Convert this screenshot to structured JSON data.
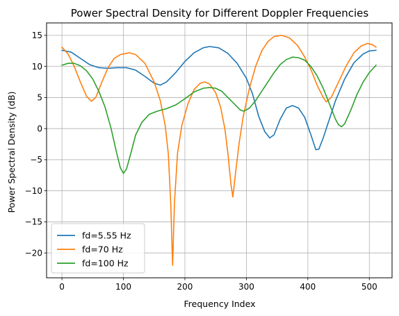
{
  "chart_data": {
    "type": "line",
    "title": "Power Spectral Density for Different Doppler Frequencies",
    "xlabel": "Frequency Index",
    "ylabel": "Power Spectral Density (dB)",
    "xlim": [
      -25,
      537
    ],
    "ylim": [
      -24,
      17
    ],
    "xticks": [
      0,
      100,
      200,
      300,
      400,
      500
    ],
    "yticks": [
      -20,
      -15,
      -10,
      -5,
      0,
      5,
      10,
      15
    ],
    "grid": true,
    "legend_position": "lower-left",
    "series": [
      {
        "name": "fd=5.55 Hz",
        "color": "#1f77b4",
        "points": [
          [
            0,
            12.6
          ],
          [
            15,
            12.3
          ],
          [
            30,
            11.3
          ],
          [
            45,
            10.3
          ],
          [
            60,
            9.8
          ],
          [
            75,
            9.7
          ],
          [
            90,
            9.8
          ],
          [
            105,
            9.8
          ],
          [
            120,
            9.4
          ],
          [
            135,
            8.4
          ],
          [
            150,
            7.3
          ],
          [
            160,
            7.0
          ],
          [
            170,
            7.5
          ],
          [
            185,
            9.0
          ],
          [
            200,
            10.8
          ],
          [
            215,
            12.2
          ],
          [
            230,
            13.0
          ],
          [
            240,
            13.2
          ],
          [
            255,
            13.0
          ],
          [
            270,
            12.1
          ],
          [
            285,
            10.5
          ],
          [
            300,
            8.1
          ],
          [
            310,
            5.6
          ],
          [
            320,
            2.0
          ],
          [
            330,
            -0.5
          ],
          [
            338,
            -1.5
          ],
          [
            345,
            -1.0
          ],
          [
            355,
            1.5
          ],
          [
            365,
            3.3
          ],
          [
            375,
            3.7
          ],
          [
            385,
            3.3
          ],
          [
            395,
            1.8
          ],
          [
            405,
            -1.0
          ],
          [
            413,
            -3.4
          ],
          [
            418,
            -3.3
          ],
          [
            425,
            -1.5
          ],
          [
            435,
            1.5
          ],
          [
            445,
            4.5
          ],
          [
            460,
            8.0
          ],
          [
            475,
            10.6
          ],
          [
            490,
            12.0
          ],
          [
            500,
            12.5
          ],
          [
            511,
            12.6
          ]
        ]
      },
      {
        "name": "fd=70 Hz",
        "color": "#ff7f0e",
        "points": [
          [
            0,
            13.1
          ],
          [
            10,
            12.0
          ],
          [
            20,
            10.0
          ],
          [
            30,
            7.5
          ],
          [
            40,
            5.2
          ],
          [
            48,
            4.4
          ],
          [
            55,
            5.0
          ],
          [
            65,
            7.5
          ],
          [
            75,
            9.8
          ],
          [
            85,
            11.3
          ],
          [
            95,
            11.9
          ],
          [
            110,
            12.2
          ],
          [
            120,
            11.9
          ],
          [
            135,
            10.5
          ],
          [
            150,
            7.5
          ],
          [
            160,
            4.5
          ],
          [
            168,
            0.5
          ],
          [
            173,
            -4.0
          ],
          [
            177,
            -12.0
          ],
          [
            180,
            -22.0
          ],
          [
            183,
            -12.0
          ],
          [
            188,
            -4.0
          ],
          [
            195,
            0.5
          ],
          [
            205,
            4.0
          ],
          [
            215,
            6.3
          ],
          [
            225,
            7.3
          ],
          [
            232,
            7.5
          ],
          [
            240,
            7.2
          ],
          [
            250,
            5.8
          ],
          [
            258,
            3.5
          ],
          [
            265,
            0.0
          ],
          [
            270,
            -4.0
          ],
          [
            275,
            -9.0
          ],
          [
            278,
            -11.0
          ],
          [
            282,
            -7.5
          ],
          [
            288,
            -2.5
          ],
          [
            295,
            2.0
          ],
          [
            305,
            6.5
          ],
          [
            315,
            10.0
          ],
          [
            325,
            12.5
          ],
          [
            335,
            14.0
          ],
          [
            345,
            14.8
          ],
          [
            357,
            15.0
          ],
          [
            370,
            14.6
          ],
          [
            383,
            13.4
          ],
          [
            395,
            11.5
          ],
          [
            405,
            9.5
          ],
          [
            415,
            7.0
          ],
          [
            425,
            5.0
          ],
          [
            430,
            4.3
          ],
          [
            438,
            5.0
          ],
          [
            450,
            7.5
          ],
          [
            462,
            10.0
          ],
          [
            475,
            12.2
          ],
          [
            487,
            13.3
          ],
          [
            497,
            13.7
          ],
          [
            505,
            13.5
          ],
          [
            511,
            13.1
          ]
        ]
      },
      {
        "name": "fd=100 Hz",
        "color": "#2ca02c",
        "points": [
          [
            0,
            10.2
          ],
          [
            10,
            10.5
          ],
          [
            20,
            10.5
          ],
          [
            30,
            10.1
          ],
          [
            40,
            9.3
          ],
          [
            50,
            8.0
          ],
          [
            60,
            6.0
          ],
          [
            70,
            3.5
          ],
          [
            80,
            0.0
          ],
          [
            88,
            -3.5
          ],
          [
            95,
            -6.3
          ],
          [
            100,
            -7.2
          ],
          [
            105,
            -6.5
          ],
          [
            112,
            -4.0
          ],
          [
            120,
            -1.0
          ],
          [
            130,
            1.0
          ],
          [
            142,
            2.3
          ],
          [
            155,
            2.8
          ],
          [
            170,
            3.2
          ],
          [
            185,
            3.8
          ],
          [
            200,
            4.8
          ],
          [
            215,
            5.9
          ],
          [
            230,
            6.5
          ],
          [
            240,
            6.6
          ],
          [
            250,
            6.5
          ],
          [
            260,
            6.0
          ],
          [
            270,
            5.0
          ],
          [
            280,
            4.0
          ],
          [
            290,
            3.0
          ],
          [
            296,
            2.8
          ],
          [
            305,
            3.3
          ],
          [
            315,
            4.5
          ],
          [
            325,
            6.0
          ],
          [
            335,
            7.5
          ],
          [
            345,
            9.0
          ],
          [
            355,
            10.3
          ],
          [
            365,
            11.1
          ],
          [
            375,
            11.5
          ],
          [
            385,
            11.4
          ],
          [
            395,
            11.0
          ],
          [
            405,
            10.0
          ],
          [
            415,
            8.5
          ],
          [
            425,
            6.5
          ],
          [
            435,
            4.0
          ],
          [
            445,
            1.5
          ],
          [
            450,
            0.6
          ],
          [
            455,
            0.3
          ],
          [
            460,
            0.8
          ],
          [
            470,
            3.0
          ],
          [
            480,
            5.5
          ],
          [
            490,
            7.5
          ],
          [
            500,
            9.0
          ],
          [
            511,
            10.2
          ]
        ]
      }
    ]
  }
}
